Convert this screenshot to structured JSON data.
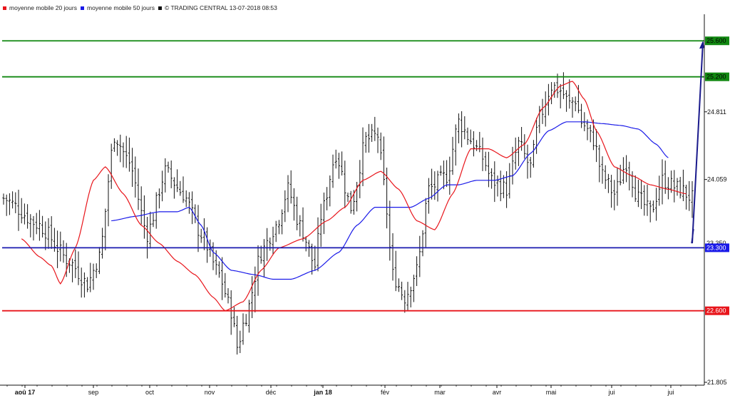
{
  "legend": {
    "items": [
      {
        "label": "moyenne mobile 20 jours",
        "color": "#e8151b"
      },
      {
        "label": "moyenne mobile 50 jours",
        "color": "#1a1ae8"
      },
      {
        "label": "© TRADING CENTRAL 13-07-2018 08:53",
        "color": "#111111"
      }
    ]
  },
  "chart_data": {
    "type": "bar",
    "subtype": "ohlc-price-chart",
    "grid": false,
    "legend_position": "top-left",
    "y_axis_side": "right",
    "ylim": [
      21.805,
      25.8
    ],
    "y_ticks": [
      {
        "value": 21.805,
        "label": "21.805"
      },
      {
        "value": 24.059,
        "label": "24.059"
      },
      {
        "value": 24.811,
        "label": "24.811"
      }
    ],
    "x_ticks": [
      {
        "label": "aoû 17",
        "bold": true
      },
      {
        "label": "sep",
        "bold": false
      },
      {
        "label": "oct",
        "bold": false
      },
      {
        "label": "nov",
        "bold": false
      },
      {
        "label": "déc",
        "bold": false
      },
      {
        "label": "jan 18",
        "bold": true
      },
      {
        "label": "fév",
        "bold": false
      },
      {
        "label": "mar",
        "bold": false
      },
      {
        "label": "avr",
        "bold": false
      },
      {
        "label": "mai",
        "bold": false
      },
      {
        "label": "jui",
        "bold": false
      },
      {
        "label": "jui",
        "bold": false
      }
    ],
    "levels": [
      {
        "value": 25.6,
        "label": "25.600",
        "color": "#118811",
        "label_bg": "#118811",
        "label_fg": "#000000"
      },
      {
        "value": 25.2,
        "label": "25.200",
        "color": "#118811",
        "label_bg": "#118811",
        "label_fg": "#000000"
      },
      {
        "value": 23.3,
        "label": "23.300",
        "color": "#1a1ab0",
        "label_bg": "#1a1ae8",
        "label_fg": "#ffffff"
      },
      {
        "value": 22.6,
        "label": "22.600",
        "color": "#e8151b",
        "label_bg": "#e8151b",
        "label_fg": "#ffffff"
      }
    ],
    "last_price": {
      "value": 23.35,
      "label": "23.350"
    },
    "projection_arrow": {
      "from": 23.35,
      "to": 25.6,
      "color": "#1a1a8c"
    },
    "price_keypoints": [
      [
        0,
        23.85
      ],
      [
        12,
        23.55
      ],
      [
        22,
        23.15
      ],
      [
        28,
        22.9
      ],
      [
        32,
        23.2
      ],
      [
        37,
        24.55
      ],
      [
        42,
        24.25
      ],
      [
        48,
        23.45
      ],
      [
        54,
        24.15
      ],
      [
        60,
        23.9
      ],
      [
        66,
        23.45
      ],
      [
        72,
        23.0
      ],
      [
        76,
        22.6
      ],
      [
        78,
        22.2
      ],
      [
        81,
        22.55
      ],
      [
        86,
        23.25
      ],
      [
        91,
        23.55
      ],
      [
        95,
        23.95
      ],
      [
        99,
        23.55
      ],
      [
        104,
        23.1
      ],
      [
        106,
        23.65
      ],
      [
        111,
        24.35
      ],
      [
        116,
        23.75
      ],
      [
        121,
        24.5
      ],
      [
        125,
        24.55
      ],
      [
        127,
        24.0
      ],
      [
        130,
        23.0
      ],
      [
        134,
        22.75
      ],
      [
        138,
        23.05
      ],
      [
        142,
        23.95
      ],
      [
        148,
        24.1
      ],
      [
        152,
        24.7
      ],
      [
        156,
        24.5
      ],
      [
        160,
        24.3
      ],
      [
        163,
        24.05
      ],
      [
        168,
        23.95
      ],
      [
        172,
        24.45
      ],
      [
        176,
        24.2
      ],
      [
        179,
        24.75
      ],
      [
        183,
        25.1
      ],
      [
        186,
        25.05
      ],
      [
        189,
        24.9
      ],
      [
        191,
        24.95
      ],
      [
        193,
        24.7
      ],
      [
        197,
        24.5
      ],
      [
        200,
        24.1
      ],
      [
        204,
        23.9
      ],
      [
        208,
        24.25
      ],
      [
        212,
        23.85
      ],
      [
        216,
        23.7
      ],
      [
        220,
        24.05
      ],
      [
        226,
        23.95
      ],
      [
        230,
        23.85
      ]
    ],
    "ma20_keypoints": [
      [
        6,
        23.4
      ],
      [
        12,
        23.2
      ],
      [
        16,
        23.1
      ],
      [
        19,
        22.9
      ],
      [
        24,
        23.3
      ],
      [
        30,
        24.05
      ],
      [
        34,
        24.2
      ],
      [
        40,
        23.9
      ],
      [
        46,
        23.55
      ],
      [
        52,
        23.35
      ],
      [
        58,
        23.15
      ],
      [
        64,
        23.0
      ],
      [
        70,
        22.75
      ],
      [
        74,
        22.6
      ],
      [
        80,
        22.7
      ],
      [
        86,
        23.05
      ],
      [
        92,
        23.3
      ],
      [
        100,
        23.4
      ],
      [
        108,
        23.6
      ],
      [
        114,
        23.75
      ],
      [
        120,
        24.05
      ],
      [
        126,
        24.15
      ],
      [
        132,
        23.95
      ],
      [
        138,
        23.6
      ],
      [
        144,
        23.5
      ],
      [
        150,
        23.9
      ],
      [
        156,
        24.4
      ],
      [
        162,
        24.4
      ],
      [
        168,
        24.3
      ],
      [
        174,
        24.45
      ],
      [
        180,
        24.85
      ],
      [
        186,
        25.1
      ],
      [
        190,
        25.15
      ],
      [
        194,
        24.95
      ],
      [
        198,
        24.6
      ],
      [
        204,
        24.2
      ],
      [
        210,
        24.1
      ],
      [
        216,
        24.0
      ],
      [
        222,
        23.95
      ],
      [
        228,
        23.9
      ]
    ],
    "ma50_keypoints": [
      [
        36,
        23.6
      ],
      [
        44,
        23.65
      ],
      [
        52,
        23.7
      ],
      [
        58,
        23.7
      ],
      [
        62,
        23.75
      ],
      [
        66,
        23.55
      ],
      [
        70,
        23.25
      ],
      [
        76,
        23.05
      ],
      [
        84,
        23.0
      ],
      [
        90,
        22.95
      ],
      [
        96,
        22.95
      ],
      [
        104,
        23.05
      ],
      [
        112,
        23.25
      ],
      [
        118,
        23.55
      ],
      [
        124,
        23.75
      ],
      [
        130,
        23.75
      ],
      [
        136,
        23.75
      ],
      [
        142,
        23.85
      ],
      [
        148,
        24.0
      ],
      [
        152,
        24.0
      ],
      [
        158,
        24.05
      ],
      [
        164,
        24.05
      ],
      [
        170,
        24.1
      ],
      [
        176,
        24.35
      ],
      [
        182,
        24.6
      ],
      [
        188,
        24.7
      ],
      [
        194,
        24.7
      ],
      [
        200,
        24.68
      ],
      [
        206,
        24.66
      ],
      [
        212,
        24.62
      ],
      [
        218,
        24.45
      ],
      [
        222,
        24.3
      ]
    ]
  }
}
